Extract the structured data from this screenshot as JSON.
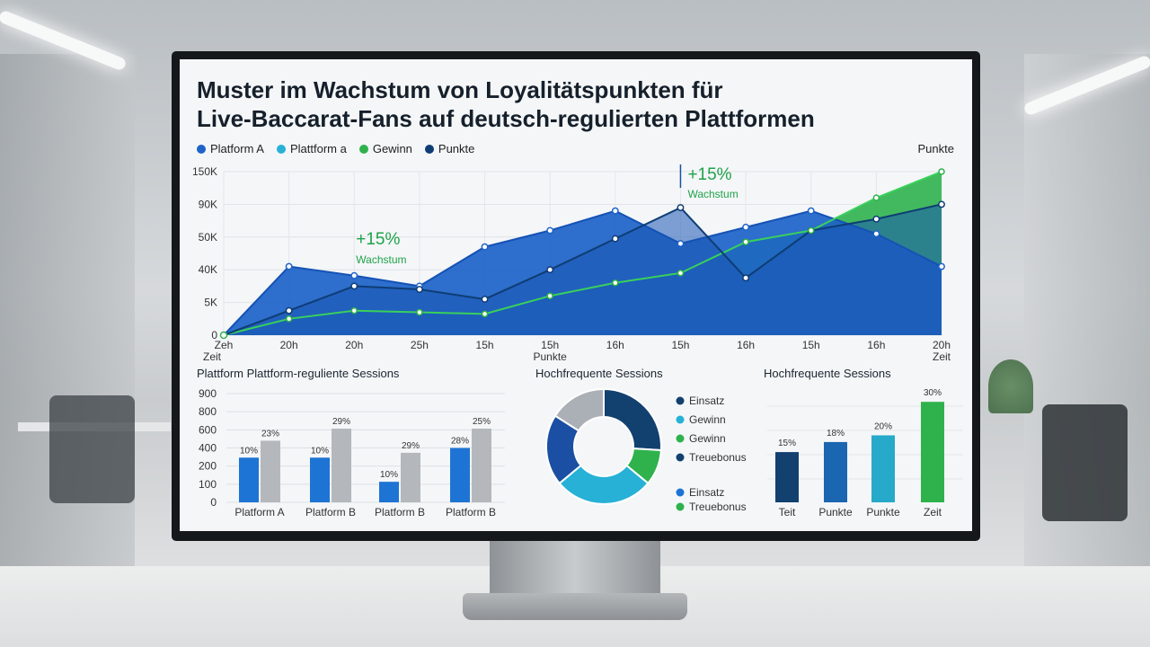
{
  "title_line1": "Muster im Wachstum von Loyalitätspunkten für",
  "title_line2": "Live-Baccarat-Fans auf deutsch-regulierten Plattformen",
  "legend": [
    {
      "label": "Platform A",
      "color": "#1e63c8"
    },
    {
      "label": "Plattform a",
      "color": "#27b1d6"
    },
    {
      "label": "Gewinn",
      "color": "#2fb24c"
    },
    {
      "label": "Punkte",
      "color": "#0e3d74"
    }
  ],
  "right_unit_label": "Punkte",
  "chart_data": [
    {
      "type": "area",
      "y_ticks": [
        "0",
        "5K",
        "40K",
        "50K",
        "90K",
        "150K"
      ],
      "x_ticks": [
        "Zeh",
        "20h",
        "20h",
        "25h",
        "15h",
        "15h",
        "16h",
        "15h",
        "16h",
        "15h",
        "16h",
        "20h"
      ],
      "x_label_left": "Zeit",
      "x_label_mid": "Punkte",
      "x_label_right": "Zeit",
      "ylim": [
        0,
        5
      ],
      "series": [
        {
          "color": "#1e63c8",
          "values": [
            0,
            2.1,
            1.82,
            1.5,
            2.7,
            3.2,
            3.8,
            2.8,
            3.3,
            3.8,
            3.1,
            2.1
          ]
        },
        {
          "color": "#0e3d74",
          "values": [
            0,
            0.75,
            1.5,
            1.4,
            1.1,
            2.0,
            2.95,
            3.9,
            1.75,
            3.2,
            3.55,
            4.0
          ]
        },
        {
          "color": "#2fb24c",
          "values": [
            0,
            0.5,
            0.75,
            0.7,
            0.65,
            1.2,
            1.6,
            1.9,
            2.85,
            3.2,
            4.2,
            5.0
          ]
        }
      ],
      "annotations": [
        {
          "text": "+15%",
          "sub": "Wachstum"
        },
        {
          "text": "+15%",
          "sub": "Wachstum"
        }
      ]
    },
    {
      "type": "bar",
      "title": "Plattform Plattform-reguliente Sessions",
      "y_ticks": [
        0,
        100,
        200,
        400,
        600,
        800,
        900
      ],
      "categories": [
        "Platform A",
        "Platform B",
        "Platform B",
        "Platform B"
      ],
      "series": [
        {
          "color": "#1e74d4",
          "values": [
            370,
            370,
            170,
            450
          ],
          "labels": [
            "10%",
            "10%",
            "10%",
            "28%"
          ]
        },
        {
          "color": "#b4b8bd",
          "values": [
            510,
            610,
            410,
            610
          ],
          "labels": [
            "23%",
            "29%",
            "29%",
            "25%"
          ]
        }
      ]
    },
    {
      "type": "pie",
      "title": "Hochfrequente Sessions",
      "slices": [
        {
          "label": "Einsatz",
          "value": 26,
          "color": "#12406f"
        },
        {
          "label": "Gewinn",
          "value": 10,
          "color": "#2fb24c"
        },
        {
          "label": "Gewinn",
          "value": 28,
          "color": "#27b1d6"
        },
        {
          "label": "Treuebonus",
          "value": 20,
          "color": "#1a4fa3"
        },
        {
          "label": "",
          "value": 16,
          "color": "#aab0b5"
        }
      ],
      "legend_a": [
        {
          "label": "Einsatz",
          "color": "#12406f"
        },
        {
          "label": "Gewinn",
          "color": "#27b1d6"
        },
        {
          "label": "Gewinn",
          "color": "#2fb24c"
        },
        {
          "label": "Treuebonus",
          "color": "#12406f"
        }
      ],
      "legend_b": [
        {
          "label": "Einsatz",
          "color": "#1e74d4"
        },
        {
          "label": "Treuebonus",
          "color": "#2fb24c"
        }
      ]
    },
    {
      "type": "bar",
      "title": "Hochfrequente Sessions",
      "categories": [
        "Teit",
        "Punkte",
        "Punkte",
        "Zeit"
      ],
      "values": [
        15,
        18,
        20,
        30
      ],
      "labels": [
        "15%",
        "18%",
        "20%",
        "30%"
      ],
      "colors": [
        "#12406f",
        "#1a66b0",
        "#27a9c9",
        "#2fb24c"
      ]
    }
  ]
}
